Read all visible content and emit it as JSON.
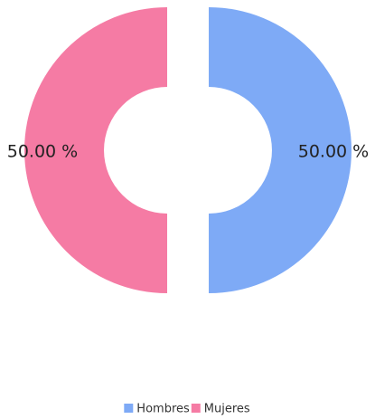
{
  "chart_data": {
    "type": "pie",
    "categories": [
      "Hombres",
      "Mujeres"
    ],
    "values": [
      50,
      50
    ],
    "value_labels": [
      "50.00 %",
      "50.00 %"
    ],
    "colors": [
      "#7eaaf6",
      "#f57ba4"
    ],
    "legend": "bottom"
  }
}
